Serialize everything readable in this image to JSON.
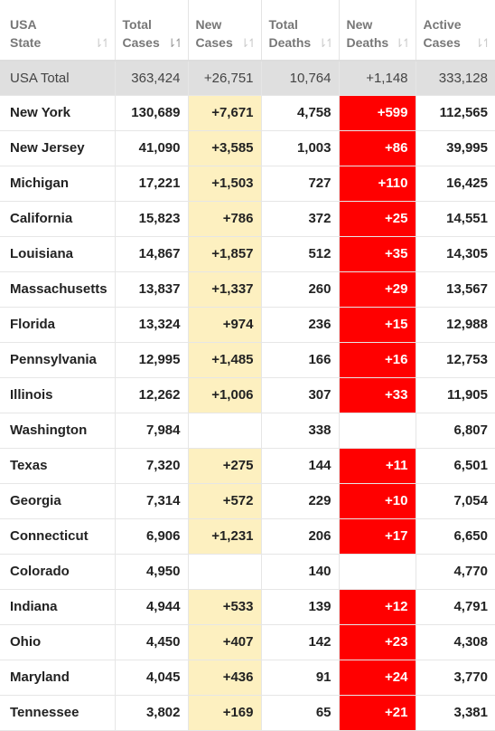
{
  "headers": [
    {
      "line1": "USA",
      "line2": "State",
      "sort": "⇂↿",
      "active": false
    },
    {
      "line1": "Total",
      "line2": "Cases",
      "sort": "⇂↿",
      "active": true
    },
    {
      "line1": "New",
      "line2": "Cases",
      "sort": "⇂↿",
      "active": false
    },
    {
      "line1": "Total",
      "line2": "Deaths",
      "sort": "⇂↿",
      "active": false
    },
    {
      "line1": "New",
      "line2": "Deaths",
      "sort": "⇂↿",
      "active": false
    },
    {
      "line1": "Active",
      "line2": "Cases",
      "sort": "⇂↿",
      "active": false
    }
  ],
  "total": {
    "state": "USA Total",
    "total_cases": "363,424",
    "new_cases": "+26,751",
    "total_deaths": "10,764",
    "new_deaths": "+1,148",
    "active_cases": "333,128"
  },
  "rows": [
    {
      "state": "New York",
      "total_cases": "130,689",
      "new_cases": "+7,671",
      "total_deaths": "4,758",
      "new_deaths": "+599",
      "active_cases": "112,565"
    },
    {
      "state": "New Jersey",
      "total_cases": "41,090",
      "new_cases": "+3,585",
      "total_deaths": "1,003",
      "new_deaths": "+86",
      "active_cases": "39,995"
    },
    {
      "state": "Michigan",
      "total_cases": "17,221",
      "new_cases": "+1,503",
      "total_deaths": "727",
      "new_deaths": "+110",
      "active_cases": "16,425"
    },
    {
      "state": "California",
      "total_cases": "15,823",
      "new_cases": "+786",
      "total_deaths": "372",
      "new_deaths": "+25",
      "active_cases": "14,551"
    },
    {
      "state": "Louisiana",
      "total_cases": "14,867",
      "new_cases": "+1,857",
      "total_deaths": "512",
      "new_deaths": "+35",
      "active_cases": "14,305"
    },
    {
      "state": "Massachusetts",
      "total_cases": "13,837",
      "new_cases": "+1,337",
      "total_deaths": "260",
      "new_deaths": "+29",
      "active_cases": "13,567"
    },
    {
      "state": "Florida",
      "total_cases": "13,324",
      "new_cases": "+974",
      "total_deaths": "236",
      "new_deaths": "+15",
      "active_cases": "12,988"
    },
    {
      "state": "Pennsylvania",
      "total_cases": "12,995",
      "new_cases": "+1,485",
      "total_deaths": "166",
      "new_deaths": "+16",
      "active_cases": "12,753"
    },
    {
      "state": "Illinois",
      "total_cases": "12,262",
      "new_cases": "+1,006",
      "total_deaths": "307",
      "new_deaths": "+33",
      "active_cases": "11,905"
    },
    {
      "state": "Washington",
      "total_cases": "7,984",
      "new_cases": "",
      "total_deaths": "338",
      "new_deaths": "",
      "active_cases": "6,807"
    },
    {
      "state": "Texas",
      "total_cases": "7,320",
      "new_cases": "+275",
      "total_deaths": "144",
      "new_deaths": "+11",
      "active_cases": "6,501"
    },
    {
      "state": "Georgia",
      "total_cases": "7,314",
      "new_cases": "+572",
      "total_deaths": "229",
      "new_deaths": "+10",
      "active_cases": "7,054"
    },
    {
      "state": "Connecticut",
      "total_cases": "6,906",
      "new_cases": "+1,231",
      "total_deaths": "206",
      "new_deaths": "+17",
      "active_cases": "6,650"
    },
    {
      "state": "Colorado",
      "total_cases": "4,950",
      "new_cases": "",
      "total_deaths": "140",
      "new_deaths": "",
      "active_cases": "4,770"
    },
    {
      "state": "Indiana",
      "total_cases": "4,944",
      "new_cases": "+533",
      "total_deaths": "139",
      "new_deaths": "+12",
      "active_cases": "4,791"
    },
    {
      "state": "Ohio",
      "total_cases": "4,450",
      "new_cases": "+407",
      "total_deaths": "142",
      "new_deaths": "+23",
      "active_cases": "4,308"
    },
    {
      "state": "Maryland",
      "total_cases": "4,045",
      "new_cases": "+436",
      "total_deaths": "91",
      "new_deaths": "+24",
      "active_cases": "3,770"
    },
    {
      "state": "Tennessee",
      "total_cases": "3,802",
      "new_cases": "+169",
      "total_deaths": "65",
      "new_deaths": "+21",
      "active_cases": "3,381"
    }
  ],
  "colors": {
    "new_cases_bg": "#fdf0c0",
    "new_deaths_bg": "#ff0000",
    "total_row_bg": "#dfdfdf"
  }
}
